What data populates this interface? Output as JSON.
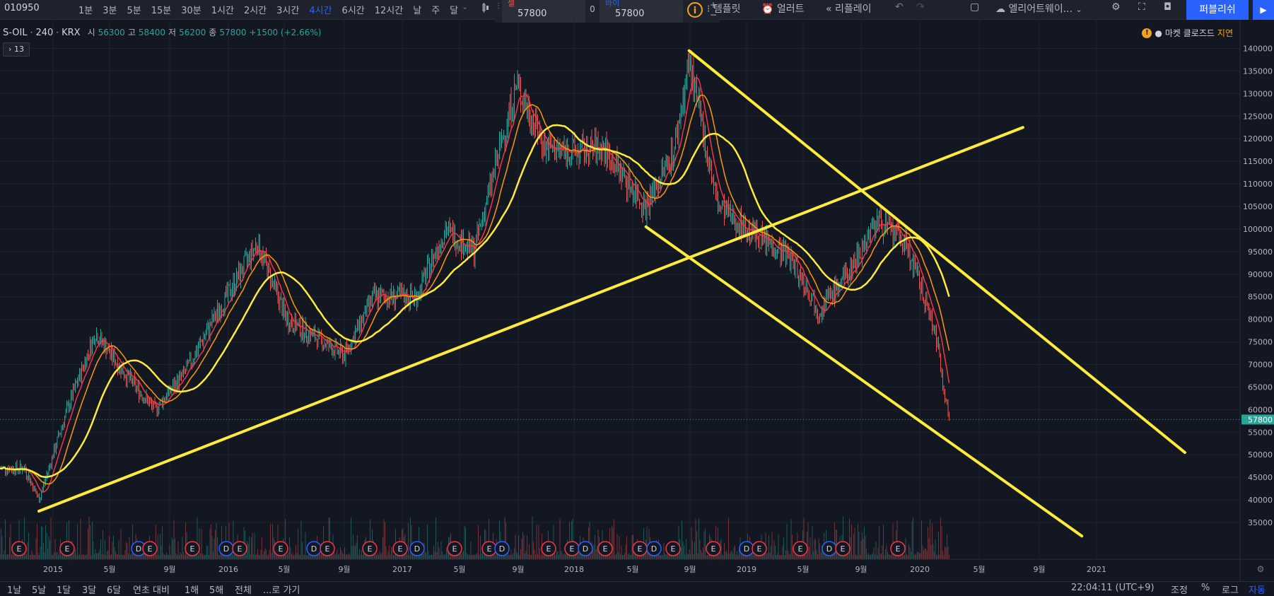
{
  "topbar": {
    "symbol": "010950",
    "timeframes": [
      "1분",
      "3분",
      "5분",
      "15분",
      "30분",
      "1시간",
      "2시간",
      "3시간",
      "4시간",
      "6시간",
      "12시간",
      "날",
      "주",
      "달"
    ],
    "active_timeframe": "4시간",
    "sell_label": "셀",
    "sell_price": "57800",
    "spread": "0",
    "buy_label": "바이",
    "buy_price": "57800",
    "info_icon": "i",
    "plus": "+",
    "minus": "−",
    "template_label": "템플릿",
    "alert_label": "얼러트",
    "replay_label": "리플레이",
    "undo_icon": "↶",
    "redo_icon": "↷",
    "elliott_label": "엘리어트웨이...",
    "publish_label": "퍼블리쉬",
    "play_icon": "▶"
  },
  "legend": {
    "name": "S-OIL",
    "interval": "240",
    "exchange": "KRX",
    "open_label": "시",
    "open": "56300",
    "high_label": "고",
    "high": "58400",
    "low_label": "저",
    "low": "56200",
    "close_label": "종",
    "close": "57800",
    "change": "+1500 (+2.66%)",
    "indicator_toggle": "13"
  },
  "market": {
    "warn": "!",
    "status": "마켓 클로즈드",
    "delay": "지연"
  },
  "price_axis": {
    "labels": [
      "140000",
      "135000",
      "130000",
      "125000",
      "120000",
      "115000",
      "110000",
      "105000",
      "100000",
      "95000",
      "90000",
      "85000",
      "80000",
      "75000",
      "70000",
      "65000",
      "60000",
      "55000",
      "50000",
      "45000",
      "40000",
      "35000"
    ],
    "current": "57800"
  },
  "time_axis": [
    "2015",
    "5월",
    "9월",
    "2016",
    "5월",
    "9월",
    "2017",
    "5월",
    "9월",
    "2018",
    "5월",
    "9월",
    "2019",
    "5월",
    "9월",
    "2020",
    "5월",
    "9월",
    "2021"
  ],
  "events": [
    "E",
    "E",
    "D",
    "E",
    "E",
    "D",
    "E",
    "E",
    "D",
    "E",
    "E",
    "E",
    "D",
    "E",
    "E",
    "D",
    "E",
    "E",
    "D",
    "E",
    "E",
    "D",
    "E",
    "E",
    "D",
    "E",
    "E",
    "D",
    "E",
    "E"
  ],
  "bottombar": {
    "ranges": [
      "1날",
      "5날",
      "1달",
      "3달",
      "6달",
      "연초 대비",
      "1해",
      "5해",
      "전체"
    ],
    "goto": "...로 가기",
    "clock": "22:04:11 (UTC+9)",
    "adjust": "조정",
    "percent": "%",
    "log": "로그",
    "auto": "자동"
  },
  "colors": {
    "up": "#26a69a",
    "down": "#ef5350",
    "trend": "#ffeb3b",
    "accent": "#2962ff"
  },
  "chart_data": {
    "type": "line",
    "price_range": [
      33000,
      142000
    ],
    "current_price": 57800,
    "approx_closes": [
      {
        "date": "2014-11",
        "value": 47000
      },
      {
        "date": "2014-12",
        "value": 40000
      },
      {
        "date": "2015-02",
        "value": 60000
      },
      {
        "date": "2015-04",
        "value": 77000
      },
      {
        "date": "2015-06",
        "value": 68000
      },
      {
        "date": "2015-08",
        "value": 60000
      },
      {
        "date": "2015-10",
        "value": 68000
      },
      {
        "date": "2015-12",
        "value": 80000
      },
      {
        "date": "2016-03",
        "value": 97000
      },
      {
        "date": "2016-05",
        "value": 80000
      },
      {
        "date": "2016-09",
        "value": 72000
      },
      {
        "date": "2016-11",
        "value": 85000
      },
      {
        "date": "2017-02",
        "value": 85000
      },
      {
        "date": "2017-04",
        "value": 100000
      },
      {
        "date": "2017-06",
        "value": 95000
      },
      {
        "date": "2017-08",
        "value": 120000
      },
      {
        "date": "2017-09",
        "value": 132000
      },
      {
        "date": "2017-11",
        "value": 118000
      },
      {
        "date": "2018-01",
        "value": 117000
      },
      {
        "date": "2018-03",
        "value": 118000
      },
      {
        "date": "2018-06",
        "value": 105000
      },
      {
        "date": "2018-08",
        "value": 118000
      },
      {
        "date": "2018-09",
        "value": 137000
      },
      {
        "date": "2018-11",
        "value": 105000
      },
      {
        "date": "2019-01",
        "value": 100000
      },
      {
        "date": "2019-04",
        "value": 94000
      },
      {
        "date": "2019-06",
        "value": 82000
      },
      {
        "date": "2019-08",
        "value": 90000
      },
      {
        "date": "2019-10",
        "value": 102000
      },
      {
        "date": "2019-12",
        "value": 97000
      },
      {
        "date": "2020-02",
        "value": 78000
      },
      {
        "date": "2020-03",
        "value": 57800
      }
    ]
  }
}
